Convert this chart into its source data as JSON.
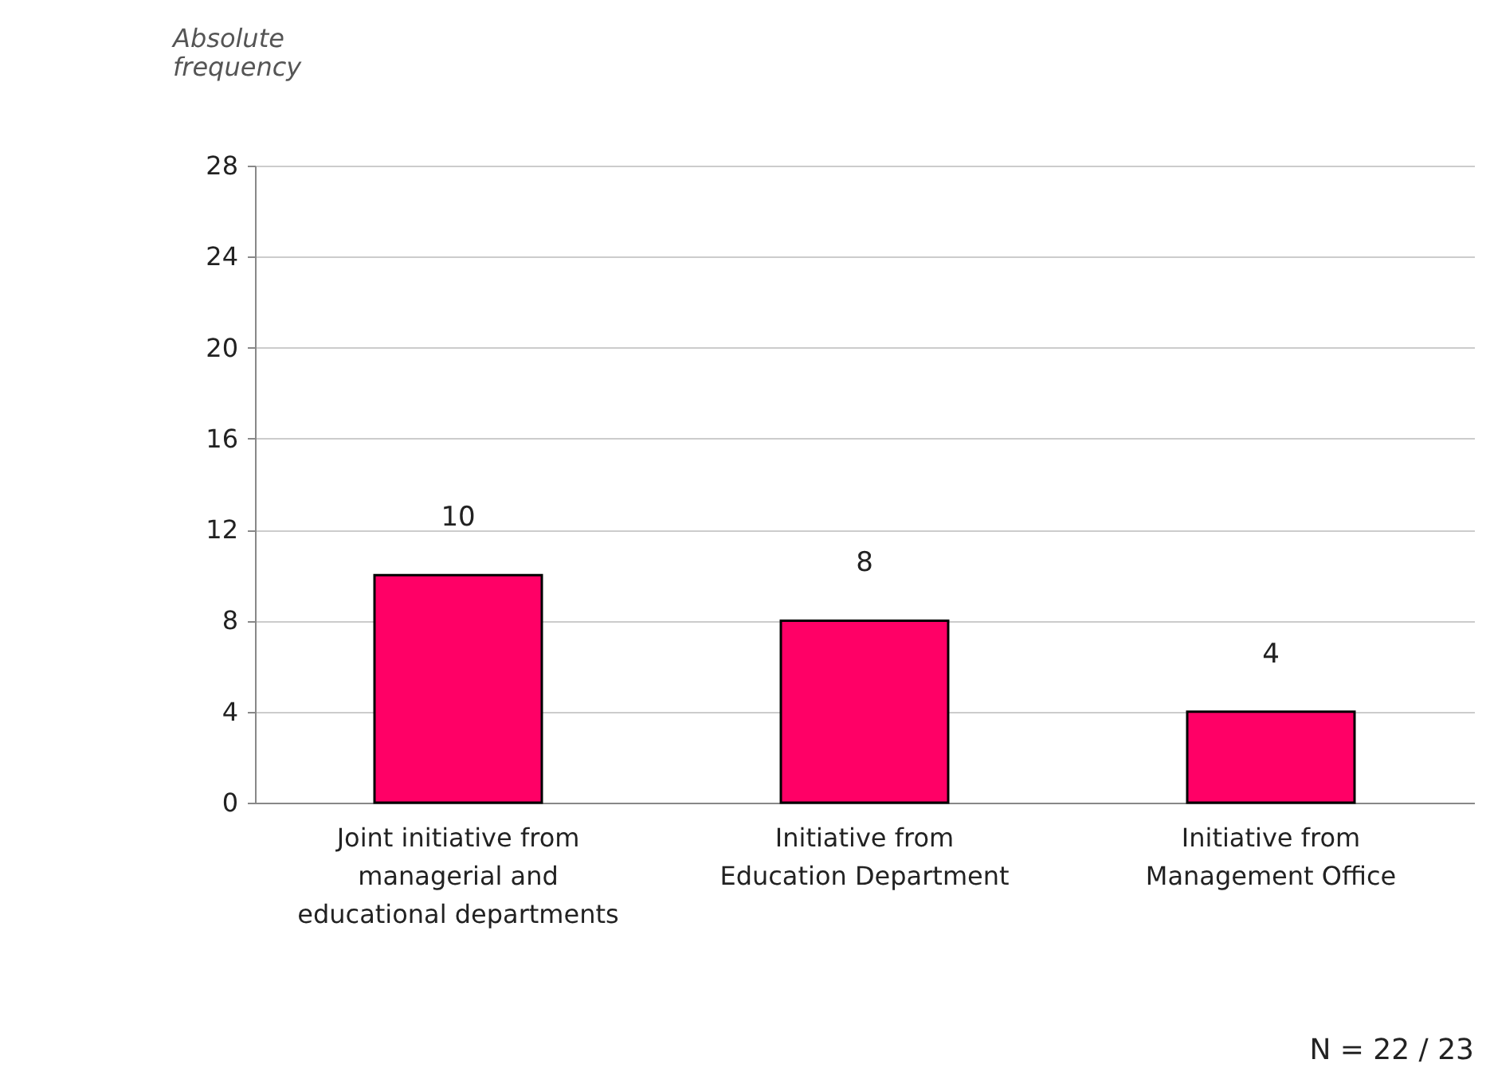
{
  "chart_data": {
    "type": "bar",
    "ylabel": "Absolute frequency",
    "categories": [
      "Joint initiative from managerial and educational departments",
      "Initiative from Education Department",
      "Initiative from Management Office"
    ],
    "values": [
      10,
      8,
      4
    ],
    "color": "#ff0066",
    "ylim": [
      0,
      28
    ],
    "yticks": [
      0,
      4,
      8,
      12,
      16,
      20,
      24,
      28
    ],
    "grid": "y",
    "data_labels": true,
    "annotations": [
      "N = 22 / 23"
    ]
  }
}
